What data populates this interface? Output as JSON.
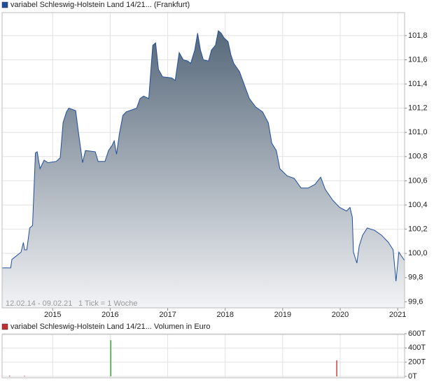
{
  "chart_data": [
    {
      "type": "area",
      "title": "variabel Schleswig-Holstein Land 14/21... (Frankfurt)",
      "color": "#1f4e9c",
      "annotations": [
        "12.02.14 - 09.02.21",
        "1 Tick = 1 Woche"
      ],
      "x": [
        2014.12,
        2014.27,
        2014.29,
        2014.45,
        2014.49,
        2014.51,
        2014.55,
        2014.6,
        2014.65,
        2014.7,
        2014.73,
        2014.78,
        2014.85,
        2014.92,
        2015.06,
        2015.13,
        2015.18,
        2015.24,
        2015.28,
        2015.4,
        2015.45,
        2015.52,
        2015.57,
        2015.74,
        2015.79,
        2015.91,
        2015.97,
        2016.03,
        2016.07,
        2016.11,
        2016.16,
        2016.22,
        2016.28,
        2016.46,
        2016.52,
        2016.58,
        2016.67,
        2016.74,
        2016.79,
        2016.84,
        2016.91,
        2017.07,
        2017.13,
        2017.2,
        2017.27,
        2017.35,
        2017.4,
        2017.47,
        2017.52,
        2017.57,
        2017.62,
        2017.71,
        2017.76,
        2017.83,
        2017.88,
        2017.93,
        2017.98,
        2018.05,
        2018.1,
        2018.15,
        2018.25,
        2018.35,
        2018.42,
        2018.53,
        2018.65,
        2018.75,
        2018.81,
        2018.89,
        2018.95,
        2019.08,
        2019.2,
        2019.32,
        2019.44,
        2019.56,
        2019.66,
        2019.74,
        2019.87,
        2019.99,
        2020.11,
        2020.17,
        2020.21,
        2020.23,
        2020.29,
        2020.33,
        2020.39,
        2020.47,
        2020.6,
        2020.72,
        2020.84,
        2020.92,
        2020.97,
        2021.02,
        2021.12
      ],
      "values": [
        99.88,
        99.88,
        99.95,
        100.01,
        100.09,
        100.03,
        100.03,
        100.21,
        100.23,
        100.83,
        100.84,
        100.7,
        100.77,
        100.75,
        100.76,
        100.79,
        101.08,
        101.17,
        101.2,
        101.18,
        100.99,
        100.75,
        100.85,
        100.84,
        100.76,
        100.76,
        100.85,
        100.89,
        100.93,
        100.82,
        100.99,
        101.14,
        101.17,
        101.2,
        101.28,
        101.3,
        101.28,
        101.72,
        101.74,
        101.52,
        101.46,
        101.45,
        101.43,
        101.66,
        101.6,
        101.59,
        101.57,
        101.68,
        101.82,
        101.68,
        101.6,
        101.59,
        101.68,
        101.72,
        101.84,
        101.82,
        101.78,
        101.75,
        101.64,
        101.57,
        101.5,
        101.37,
        101.28,
        101.21,
        101.17,
        101.08,
        100.91,
        100.85,
        100.7,
        100.64,
        100.62,
        100.54,
        100.54,
        100.57,
        100.63,
        100.53,
        100.44,
        100.38,
        100.35,
        100.38,
        100.3,
        100.01,
        99.92,
        100.06,
        100.15,
        100.21,
        100.19,
        100.15,
        100.09,
        100.03,
        99.77,
        100.01,
        99.94
      ],
      "xlim": [
        2014.12,
        2021.12
      ],
      "xticks": [
        2015,
        2016,
        2017,
        2018,
        2019,
        2020,
        2021
      ],
      "ylim": [
        99.55,
        101.99
      ],
      "yticks": [
        {
          "value": 99.6,
          "label": "99,6"
        },
        {
          "value": 99.8,
          "label": "99,8"
        },
        {
          "value": 100.0,
          "label": "100,0"
        },
        {
          "value": 100.2,
          "label": "100,2"
        },
        {
          "value": 100.4,
          "label": "100,4"
        },
        {
          "value": 100.6,
          "label": "100,6"
        },
        {
          "value": 100.8,
          "label": "100,8"
        },
        {
          "value": 101.0,
          "label": "101,0"
        },
        {
          "value": 101.2,
          "label": "101,2"
        },
        {
          "value": 101.4,
          "label": "101,4"
        },
        {
          "value": 101.6,
          "label": "101,6"
        },
        {
          "value": 101.8,
          "label": "101,8"
        }
      ],
      "grid": true
    },
    {
      "type": "bar",
      "title": "variabel Schleswig-Holstein Land 14/21... Volumen in Euro",
      "color": "#c03030",
      "x": [
        2014.25,
        2014.51,
        2016.01,
        2019.94
      ],
      "values": [
        10000,
        8000,
        510000,
        225000
      ],
      "colors": [
        "#d04040",
        "#d04040",
        "#40b040",
        "#d04040"
      ],
      "ylim": [
        0,
        600000
      ],
      "yticks": [
        {
          "value": 0,
          "label": "0T"
        },
        {
          "value": 200000,
          "label": "200T"
        },
        {
          "value": 400000,
          "label": "400T"
        },
        {
          "value": 600000,
          "label": "600T"
        }
      ],
      "grid": true
    }
  ]
}
